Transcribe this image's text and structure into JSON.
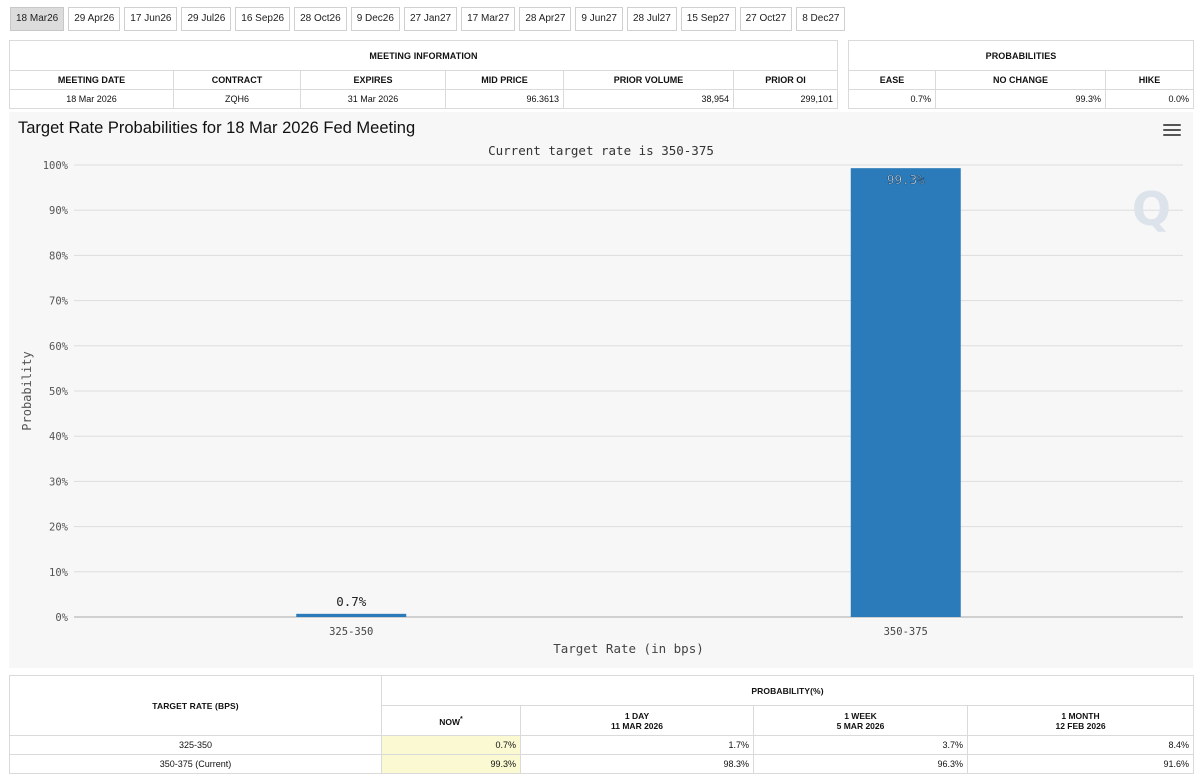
{
  "tabs": [
    {
      "label": "18 Mar26",
      "active": true
    },
    {
      "label": "29 Apr26"
    },
    {
      "label": "17 Jun26"
    },
    {
      "label": "29 Jul26"
    },
    {
      "label": "16 Sep26"
    },
    {
      "label": "28 Oct26"
    },
    {
      "label": "9 Dec26"
    },
    {
      "label": "27 Jan27"
    },
    {
      "label": "17 Mar27"
    },
    {
      "label": "28 Apr27"
    },
    {
      "label": "9 Jun27"
    },
    {
      "label": "28 Jul27"
    },
    {
      "label": "15 Sep27"
    },
    {
      "label": "27 Oct27"
    },
    {
      "label": "8 Dec27"
    }
  ],
  "meeting_info": {
    "title": "MEETING INFORMATION",
    "headers": [
      "MEETING DATE",
      "CONTRACT",
      "EXPIRES",
      "MID PRICE",
      "PRIOR VOLUME",
      "PRIOR OI"
    ],
    "values": [
      "18 Mar 2026",
      "ZQH6",
      "31 Mar 2026",
      "96.3613",
      "38,954",
      "299,101"
    ]
  },
  "probabilities": {
    "title": "PROBABILITIES",
    "headers": [
      "EASE",
      "NO CHANGE",
      "HIKE"
    ],
    "values": [
      "0.7%",
      "99.3%",
      "0.0%"
    ]
  },
  "chart": {
    "menu_icon": "hamburger-menu-icon",
    "watermark": "Q"
  },
  "chart_data": {
    "type": "bar",
    "title": "Target Rate Probabilities for 18 Mar 2026 Fed Meeting",
    "subtitle": "Current target rate is 350-375",
    "xlabel": "Target Rate (in bps)",
    "ylabel": "Probability",
    "categories": [
      "325-350",
      "350-375"
    ],
    "values": [
      0.7,
      99.3
    ],
    "data_labels": [
      "0.7%",
      "99.3%"
    ],
    "ylim": [
      0,
      100
    ],
    "yticks": [
      0,
      10,
      20,
      30,
      40,
      50,
      60,
      70,
      80,
      90,
      100
    ],
    "ytick_labels": [
      "0%",
      "10%",
      "20%",
      "30%",
      "40%",
      "50%",
      "60%",
      "70%",
      "80%",
      "90%",
      "100%"
    ],
    "grid": true,
    "bar_color": "#2b7bba"
  },
  "rate_table": {
    "title_left": "TARGET RATE (BPS)",
    "title_right": "PROBABILITY(%)",
    "columns": [
      {
        "line1": "NOW",
        "sup": "*",
        "line2": ""
      },
      {
        "line1": "1 DAY",
        "line2": "11 MAR 2026"
      },
      {
        "line1": "1 WEEK",
        "line2": "5 MAR 2026"
      },
      {
        "line1": "1 MONTH",
        "line2": "12 FEB 2026"
      }
    ],
    "rows": [
      {
        "rate": "325-350",
        "values": [
          "0.7%",
          "1.7%",
          "3.7%",
          "8.4%"
        ]
      },
      {
        "rate": "350-375 (Current)",
        "values": [
          "99.3%",
          "98.3%",
          "96.3%",
          "91.6%"
        ]
      }
    ]
  }
}
